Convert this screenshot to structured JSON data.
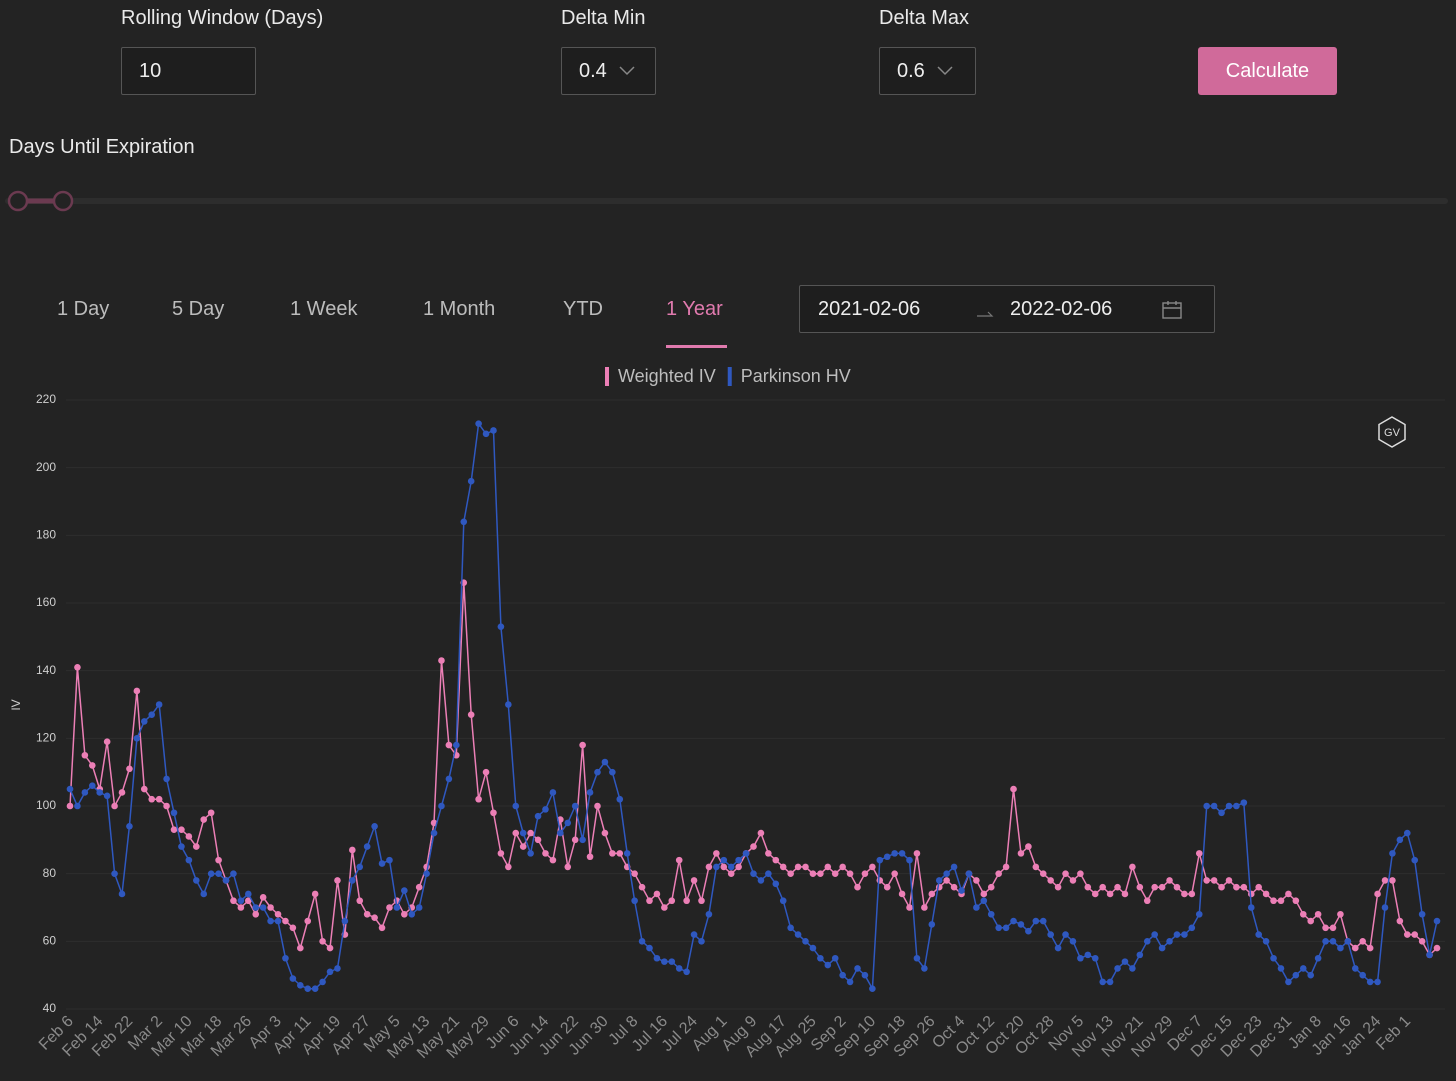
{
  "controls": {
    "rolling_window": {
      "label": "Rolling Window (Days)",
      "value": "10"
    },
    "delta_min": {
      "label": "Delta Min",
      "value": "0.4"
    },
    "delta_max": {
      "label": "Delta Max",
      "value": "0.6"
    },
    "calculate": "Calculate",
    "days_until_expiration": "Days Until Expiration"
  },
  "tabs": [
    "1 Day",
    "5 Day",
    "1 Week",
    "1 Month",
    "YTD",
    "1 Year"
  ],
  "date_range": {
    "start": "2021-02-06",
    "end": "2022-02-06"
  },
  "watermark": "GV",
  "chart_data": {
    "type": "line",
    "y_label": "IV",
    "categories": [
      "Feb 6",
      null,
      null,
      null,
      "Feb 14",
      null,
      null,
      null,
      "Feb 22",
      null,
      null,
      null,
      "Mar 2",
      null,
      null,
      null,
      "Mar 10",
      null,
      null,
      null,
      "Mar 18",
      null,
      null,
      null,
      "Mar 26",
      null,
      null,
      null,
      "Apr 3",
      null,
      null,
      null,
      "Apr 11",
      null,
      null,
      null,
      "Apr 19",
      null,
      null,
      null,
      "Apr 27",
      null,
      null,
      null,
      "May 5",
      null,
      null,
      null,
      "May 13",
      null,
      null,
      null,
      "May 21",
      null,
      null,
      null,
      "May 29",
      null,
      null,
      null,
      "Jun 6",
      null,
      null,
      null,
      "Jun 14",
      null,
      null,
      null,
      "Jun 22",
      null,
      null,
      null,
      "Jun 30",
      null,
      null,
      null,
      "Jul 8",
      null,
      null,
      null,
      "Jul 16",
      null,
      null,
      null,
      "Jul 24",
      null,
      null,
      null,
      "Aug 1",
      null,
      null,
      null,
      "Aug 9",
      null,
      null,
      null,
      "Aug 17",
      null,
      null,
      null,
      "Aug 25",
      null,
      null,
      null,
      "Sep 2",
      null,
      null,
      null,
      "Sep 10",
      null,
      null,
      null,
      "Sep 18",
      null,
      null,
      null,
      "Sep 26",
      null,
      null,
      null,
      "Oct 4",
      null,
      null,
      null,
      "Oct 12",
      null,
      null,
      null,
      "Oct 20",
      null,
      null,
      null,
      "Oct 28",
      null,
      null,
      null,
      "Nov 5",
      null,
      null,
      null,
      "Nov 13",
      null,
      null,
      null,
      "Nov 21",
      null,
      null,
      null,
      "Nov 29",
      null,
      null,
      null,
      "Dec 7",
      null,
      null,
      null,
      "Dec 15",
      null,
      null,
      null,
      "Dec 23",
      null,
      null,
      null,
      "Dec 31",
      null,
      null,
      null,
      "Jan 8",
      null,
      null,
      null,
      "Jan 16",
      null,
      null,
      null,
      "Jan 24",
      null,
      null,
      null,
      "Feb 1",
      null,
      null,
      null,
      null
    ],
    "series": [
      {
        "name": "Weighted IV",
        "color": "#ec7fb6",
        "values": [
          100,
          141,
          115,
          112,
          105,
          119,
          100,
          104,
          111,
          134,
          105,
          102,
          102,
          100,
          93,
          93,
          91,
          88,
          96,
          98,
          84,
          78,
          72,
          70,
          72,
          68,
          73,
          70,
          68,
          66,
          64,
          58,
          66,
          74,
          60,
          58,
          78,
          62,
          87,
          72,
          68,
          67,
          64,
          70,
          72,
          68,
          70,
          76,
          82,
          95,
          143,
          118,
          115,
          166,
          127,
          102,
          110,
          98,
          86,
          82,
          92,
          88,
          92,
          90,
          86,
          84,
          96,
          82,
          90,
          118,
          85,
          100,
          92,
          86,
          86,
          82,
          80,
          76,
          72,
          74,
          70,
          72,
          84,
          72,
          78,
          72,
          82,
          86,
          82,
          80,
          82,
          86,
          88,
          92,
          86,
          84,
          82,
          80,
          82,
          82,
          80,
          80,
          82,
          80,
          82,
          80,
          76,
          80,
          82,
          78,
          76,
          80,
          74,
          70,
          86,
          70,
          74,
          76,
          78,
          76,
          74,
          80,
          78,
          74,
          76,
          80,
          82,
          105,
          86,
          88,
          82,
          80,
          78,
          76,
          80,
          78,
          80,
          76,
          74,
          76,
          74,
          76,
          74,
          82,
          76,
          72,
          76,
          76,
          78,
          76,
          74,
          74,
          86,
          78,
          78,
          76,
          78,
          76,
          76,
          74,
          76,
          74,
          72,
          72,
          74,
          72,
          68,
          66,
          68,
          64,
          64,
          68,
          60,
          58,
          60,
          58,
          74,
          78,
          78,
          66,
          62,
          62,
          60,
          56,
          58
        ]
      },
      {
        "name": "Parkinson HV",
        "color": "#2f58c0",
        "values": [
          105,
          100,
          104,
          106,
          104,
          103,
          80,
          74,
          94,
          120,
          125,
          127,
          130,
          108,
          98,
          88,
          84,
          78,
          74,
          80,
          80,
          78,
          80,
          72,
          74,
          70,
          70,
          66,
          66,
          55,
          49,
          47,
          46,
          46,
          48,
          51,
          52,
          66,
          78,
          82,
          88,
          94,
          83,
          84,
          70,
          75,
          68,
          70,
          80,
          92,
          100,
          108,
          118,
          184,
          196,
          213,
          210,
          211,
          153,
          130,
          100,
          92,
          86,
          97,
          99,
          104,
          92,
          95,
          100,
          90,
          104,
          110,
          113,
          110,
          102,
          86,
          72,
          60,
          58,
          55,
          54,
          54,
          52,
          51,
          62,
          60,
          68,
          82,
          84,
          82,
          84,
          86,
          80,
          78,
          80,
          77,
          72,
          64,
          62,
          60,
          58,
          55,
          53,
          55,
          50,
          48,
          52,
          50,
          46,
          84,
          85,
          86,
          86,
          84,
          55,
          52,
          65,
          78,
          80,
          82,
          75,
          80,
          70,
          72,
          68,
          64,
          64,
          66,
          65,
          63,
          66,
          66,
          62,
          58,
          62,
          60,
          55,
          56,
          55,
          48,
          48,
          52,
          54,
          52,
          56,
          60,
          62,
          58,
          60,
          62,
          62,
          64,
          68,
          100,
          100,
          98,
          100,
          100,
          101,
          70,
          62,
          60,
          55,
          52,
          48,
          50,
          52,
          50,
          55,
          60,
          60,
          58,
          60,
          52,
          50,
          48,
          48,
          70,
          86,
          90,
          92,
          84,
          68,
          56,
          66
        ]
      }
    ],
    "ylim": [
      40,
      220
    ],
    "yticks": [
      40,
      60,
      80,
      100,
      120,
      140,
      160,
      180,
      200,
      220
    ],
    "grid": true
  }
}
